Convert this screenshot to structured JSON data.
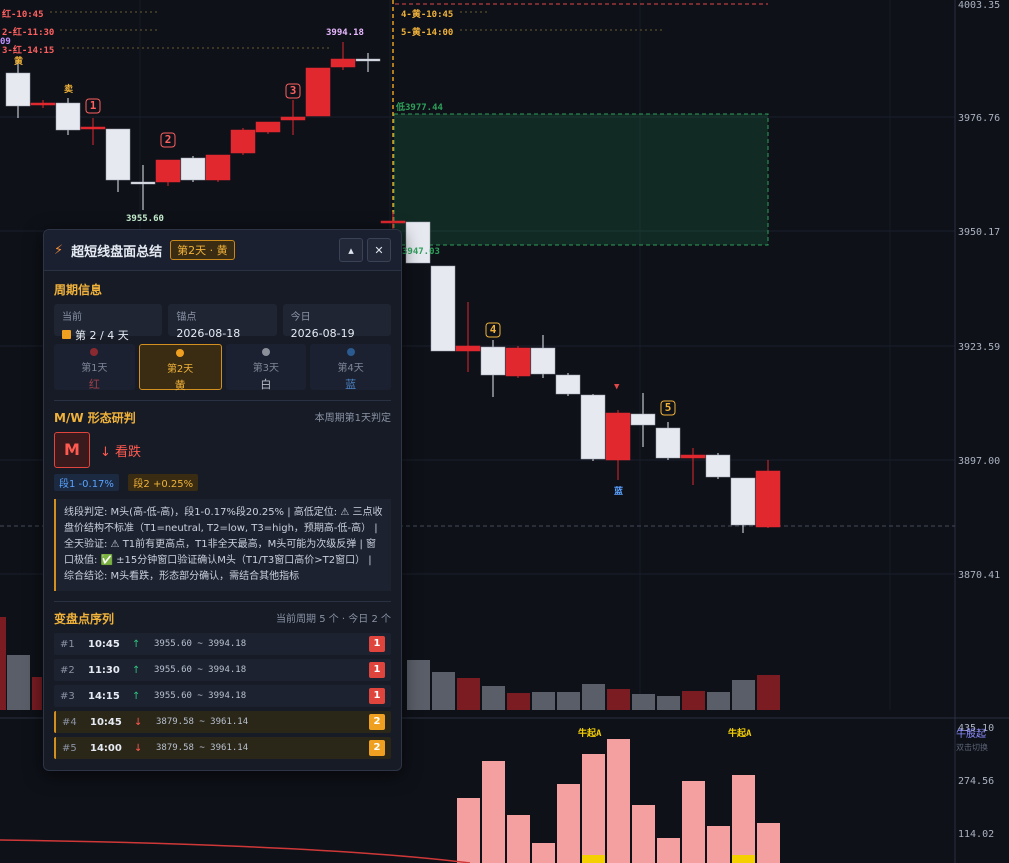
{
  "price_axis": {
    "ticks": [
      "4003.35",
      "3976.76",
      "3950.17",
      "3923.59",
      "3897.00",
      "3870.41"
    ]
  },
  "indicator_axis": {
    "ticks": [
      "435.10",
      "274.56",
      "114.02"
    ],
    "label": "牛股起",
    "hint": "双击切换"
  },
  "annotations": [
    "红-10:45",
    "2-红-11:30",
    "09",
    "3-红-14:15",
    "黄",
    "卖",
    "1",
    "2",
    "3",
    "3994.18",
    "3955.60",
    "4-黄-10:45",
    "5-黄-14:00",
    "低3977.44",
    "3947.03",
    "4",
    "5",
    "▼",
    "蓝",
    "牛起A",
    "牛起A"
  ],
  "panel": {
    "title": "超短线盘面总结",
    "badge": "第2天 · 黄",
    "collapse": "▴",
    "close": "✕",
    "cycle": {
      "title": "周期信息",
      "boxes": [
        {
          "label": "当前",
          "value": "第 2 / 4 天"
        },
        {
          "label": "锚点",
          "value": "2026-08-18"
        },
        {
          "label": "今日",
          "value": "2026-08-19"
        }
      ],
      "tabs": [
        {
          "day": "第1天",
          "color": "红"
        },
        {
          "day": "第2天",
          "color": "黄"
        },
        {
          "day": "第3天",
          "color": "白"
        },
        {
          "day": "第4天",
          "color": "蓝"
        }
      ]
    },
    "mw": {
      "title": "M/W 形态研判",
      "note": "本周期第1天判定",
      "letter": "M",
      "verdict": "↓ 看跌",
      "chips": [
        "段1 -0.17%",
        "段2 +0.25%"
      ],
      "text": "线段判定: M头(高-低-高)，段1-0.17%段20.25% | 高低定位: ⚠ 三点收盘价结构不标准（T1=neutral, T2=low, T3=high，预期高-低-高） | 全天验证: ⚠ T1前有更高点，T1非全天最高，M头可能为次级反弹 | 窗口极值: ✅ ±15分钟窗口验证确认M头（T1/T3窗口高价>T2窗口） | 综合结论: M头看跌，形态部分确认，需结合其他指标"
    },
    "turns": {
      "title": "变盘点序列",
      "note": "当前周期 5 个 · 今日 2 个",
      "rows": [
        {
          "no": "#1",
          "time": "10:45",
          "dir": "↑",
          "range": "3955.60 ~ 3994.18",
          "day": "1"
        },
        {
          "no": "#2",
          "time": "11:30",
          "dir": "↑",
          "range": "3955.60 ~ 3994.18",
          "day": "1"
        },
        {
          "no": "#3",
          "time": "14:15",
          "dir": "↑",
          "range": "3955.60 ~ 3994.18",
          "day": "1"
        },
        {
          "no": "#4",
          "time": "10:45",
          "dir": "↓",
          "range": "3879.58 ~ 3961.14",
          "day": "2"
        },
        {
          "no": "#5",
          "time": "14:00",
          "dir": "↓",
          "range": "3879.58 ~ 3961.14",
          "day": "2"
        }
      ]
    }
  }
}
